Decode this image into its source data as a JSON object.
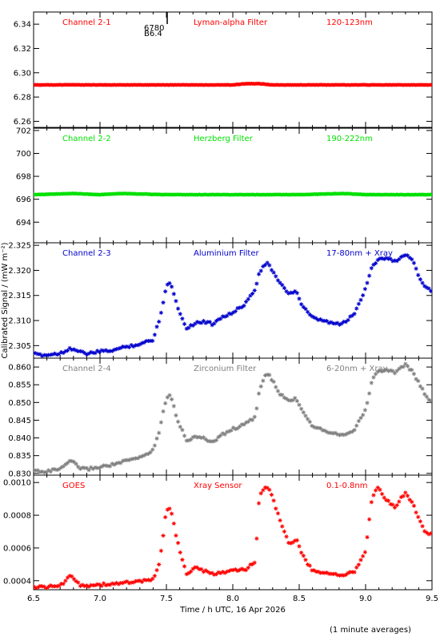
{
  "page": {
    "xlabel": "Time / h UTC, 16 Apr 2026",
    "ylabel": "Calibrated Signal / (mW m⁻²)",
    "footer": "(1 minute averages)",
    "marker_labels": [
      "6780",
      "B6.4"
    ]
  },
  "chart_data": [
    {
      "type": "scatter",
      "panel": "channel-2-1",
      "labels": [
        "Channel 2-1",
        "Lyman-alpha Filter",
        "120-123nm"
      ],
      "color": "#ff0000",
      "xlim": [
        6.5,
        9.5
      ],
      "ylim": [
        6.255,
        6.35
      ],
      "yticks": [
        6.26,
        6.28,
        6.3,
        6.32,
        6.34
      ],
      "ytick_decimals": 2,
      "x": [
        6.5,
        7.0,
        7.5,
        8.0,
        8.1,
        8.2,
        8.3,
        8.5,
        9.0,
        9.5
      ],
      "y": [
        6.29,
        6.29,
        6.29,
        6.29,
        6.291,
        6.291,
        6.29,
        6.29,
        6.29,
        6.29
      ]
    },
    {
      "type": "scatter",
      "panel": "channel-2-2",
      "labels": [
        "Channel 2-2",
        "Herzberg Filter",
        "190-222nm"
      ],
      "color": "#00e000",
      "xlim": [
        6.5,
        9.5
      ],
      "ylim": [
        692.2,
        702.2
      ],
      "yticks": [
        694,
        696,
        698,
        700,
        702
      ],
      "ytick_decimals": 0,
      "x": [
        6.5,
        6.8,
        7.0,
        7.17,
        7.5,
        8.0,
        8.5,
        8.83,
        9.0,
        9.5
      ],
      "y": [
        696.4,
        696.5,
        696.4,
        696.5,
        696.4,
        696.4,
        696.4,
        696.5,
        696.4,
        696.4
      ]
    },
    {
      "type": "scatter",
      "panel": "channel-2-3",
      "labels": [
        "Channel 2-3",
        "Aluminium Filter",
        "17-80nm + Xray"
      ],
      "color": "#0000cc",
      "xlim": [
        6.5,
        9.5
      ],
      "ylim": [
        2.3025,
        2.3255
      ],
      "yticks": [
        2.305,
        2.31,
        2.315,
        2.32,
        2.325
      ],
      "ytick_decimals": 3,
      "x": [
        6.5,
        6.6,
        6.72,
        6.77,
        6.8,
        6.85,
        6.9,
        7.0,
        7.1,
        7.2,
        7.3,
        7.4,
        7.45,
        7.5,
        7.53,
        7.58,
        7.65,
        7.72,
        7.78,
        7.85,
        7.9,
        8.0,
        8.1,
        8.17,
        8.2,
        8.25,
        8.28,
        8.35,
        8.42,
        8.48,
        8.52,
        8.6,
        8.7,
        8.8,
        8.85,
        8.92,
        9.0,
        9.05,
        9.1,
        9.15,
        9.22,
        9.3,
        9.35,
        9.4,
        9.45,
        9.5
      ],
      "y": [
        2.3033,
        2.3031,
        2.3036,
        2.3045,
        2.3043,
        2.3037,
        2.3034,
        2.3038,
        2.3041,
        2.3048,
        2.3053,
        2.3062,
        2.3105,
        2.3168,
        2.3178,
        2.313,
        2.3085,
        2.3095,
        2.3098,
        2.3093,
        2.3105,
        2.3115,
        2.3135,
        2.3165,
        2.3197,
        2.3215,
        2.3208,
        2.3175,
        2.3155,
        2.3158,
        2.313,
        2.3105,
        2.3098,
        2.3092,
        2.3098,
        2.3115,
        2.3165,
        2.321,
        2.3222,
        2.3225,
        2.3218,
        2.3232,
        2.3222,
        2.319,
        2.3167,
        2.3158
      ]
    },
    {
      "type": "scatter",
      "panel": "channel-2-4",
      "labels": [
        "Channel 2-4",
        "Zirconium Filter",
        "6-20nm + Xray"
      ],
      "color": "#808080",
      "xlim": [
        6.5,
        9.5
      ],
      "ylim": [
        0.8295,
        0.8625
      ],
      "yticks": [
        0.83,
        0.835,
        0.84,
        0.845,
        0.85,
        0.855,
        0.86
      ],
      "ytick_decimals": 3,
      "x": [
        6.5,
        6.6,
        6.72,
        6.77,
        6.8,
        6.85,
        6.9,
        7.0,
        7.1,
        7.2,
        7.3,
        7.4,
        7.45,
        7.5,
        7.53,
        7.58,
        7.65,
        7.72,
        7.78,
        7.85,
        7.9,
        8.0,
        8.1,
        8.17,
        8.2,
        8.25,
        8.28,
        8.35,
        8.42,
        8.48,
        8.52,
        8.6,
        8.7,
        8.8,
        8.85,
        8.92,
        9.0,
        9.05,
        9.1,
        9.15,
        9.22,
        9.3,
        9.35,
        9.4,
        9.45,
        9.5
      ],
      "y": [
        0.8308,
        0.8305,
        0.8315,
        0.8335,
        0.833,
        0.8315,
        0.8312,
        0.8318,
        0.8325,
        0.8335,
        0.8345,
        0.8365,
        0.8425,
        0.8515,
        0.8525,
        0.8455,
        0.8392,
        0.8405,
        0.8398,
        0.8388,
        0.8405,
        0.8425,
        0.844,
        0.846,
        0.8535,
        0.858,
        0.8575,
        0.8525,
        0.8505,
        0.851,
        0.848,
        0.8435,
        0.842,
        0.841,
        0.8412,
        0.8425,
        0.848,
        0.8565,
        0.859,
        0.8592,
        0.8585,
        0.8608,
        0.8588,
        0.8555,
        0.852,
        0.85
      ]
    },
    {
      "type": "scatter",
      "panel": "goes",
      "labels": [
        "GOES",
        "Xray Sensor",
        "0.1-0.8nm"
      ],
      "color": "#ff0000",
      "xlim": [
        6.5,
        9.5
      ],
      "ylim": [
        0.000345,
        0.001045
      ],
      "yticks": [
        0.0004,
        0.0006,
        0.0008,
        0.001
      ],
      "ytick_decimals": 4,
      "x": [
        6.5,
        6.6,
        6.72,
        6.77,
        6.8,
        6.85,
        6.9,
        7.0,
        7.1,
        7.2,
        7.3,
        7.4,
        7.45,
        7.5,
        7.53,
        7.58,
        7.65,
        7.72,
        7.78,
        7.85,
        7.9,
        8.0,
        8.1,
        8.17,
        8.2,
        8.25,
        8.28,
        8.35,
        8.42,
        8.48,
        8.52,
        8.6,
        8.7,
        8.8,
        8.85,
        8.92,
        9.0,
        9.05,
        9.1,
        9.15,
        9.22,
        9.3,
        9.35,
        9.4,
        9.45,
        9.5
      ],
      "y": [
        0.00036,
        0.00036,
        0.000375,
        0.00043,
        0.00042,
        0.000375,
        0.00037,
        0.000375,
        0.00038,
        0.00039,
        0.000395,
        0.000405,
        0.00052,
        0.00083,
        0.00085,
        0.00065,
        0.00044,
        0.00048,
        0.00046,
        0.00044,
        0.00045,
        0.00046,
        0.00047,
        0.00052,
        0.00092,
        0.00098,
        0.00096,
        0.00078,
        0.00063,
        0.00065,
        0.00056,
        0.00046,
        0.00045,
        0.00043,
        0.00044,
        0.00046,
        0.00058,
        0.00092,
        0.00097,
        0.0009,
        0.00085,
        0.00094,
        0.00088,
        0.00078,
        0.0007,
        0.00068
      ]
    }
  ]
}
